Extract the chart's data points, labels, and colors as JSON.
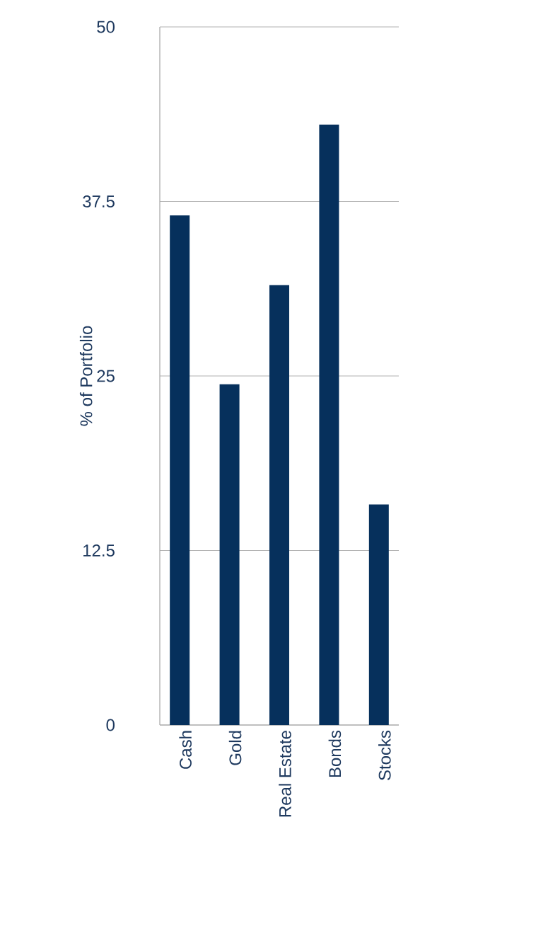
{
  "chart_data": {
    "type": "bar",
    "ylabel": "% of Portfolio",
    "categories": [
      "Cash",
      "Gold",
      "Real Estate",
      "Bonds",
      "Stocks"
    ],
    "values": [
      36.5,
      24.4,
      31.5,
      43.0,
      15.8
    ],
    "color": "#06305c",
    "ylim": [
      0,
      50
    ],
    "yticks": [
      0,
      12.5,
      25,
      37.5,
      50
    ],
    "grid": "y"
  }
}
